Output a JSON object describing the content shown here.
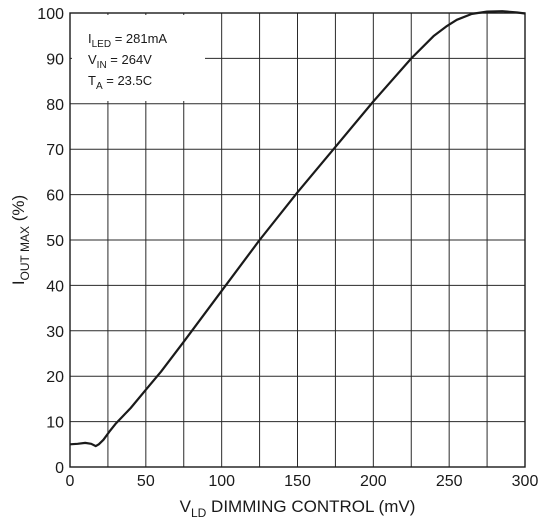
{
  "chart_data": {
    "type": "line",
    "xlabel": {
      "main": "V",
      "sub": "LD",
      "rest": " DIMMING CONTROL (mV)"
    },
    "ylabel": {
      "main": "I",
      "sub": "OUT MAX",
      "rest": " (%)"
    },
    "xlim": [
      0,
      300
    ],
    "ylim": [
      0,
      100
    ],
    "xticks": [
      0,
      50,
      100,
      150,
      200,
      250,
      300
    ],
    "yticks": [
      0,
      10,
      20,
      30,
      40,
      50,
      60,
      70,
      80,
      90,
      100
    ],
    "minor_x_step": 25,
    "grid": true,
    "line_color": "#1a1a1a",
    "grid_color": "#2a2a2a",
    "annotation": [
      {
        "main": "I",
        "sub": "LED",
        "rest": " = 281mA"
      },
      {
        "main": "V",
        "sub": "IN",
        "rest": " = 264V"
      },
      {
        "main": "T",
        "sub": "A",
        "rest": " = 23.5C"
      }
    ],
    "series": [
      {
        "x": [
          0,
          5,
          10,
          14,
          17,
          19,
          22,
          26,
          30,
          40,
          50,
          60,
          75,
          100,
          125,
          150,
          175,
          200,
          225,
          240,
          248,
          255,
          265,
          275,
          285,
          295,
          300
        ],
        "y": [
          5.0,
          5.1,
          5.3,
          5.1,
          4.6,
          5.0,
          6.0,
          7.8,
          9.5,
          13.0,
          17.0,
          21.0,
          27.6,
          38.8,
          50.0,
          60.5,
          70.5,
          80.5,
          90.0,
          95.0,
          97.0,
          98.5,
          99.8,
          100.3,
          100.4,
          100.1,
          99.9
        ]
      }
    ]
  }
}
